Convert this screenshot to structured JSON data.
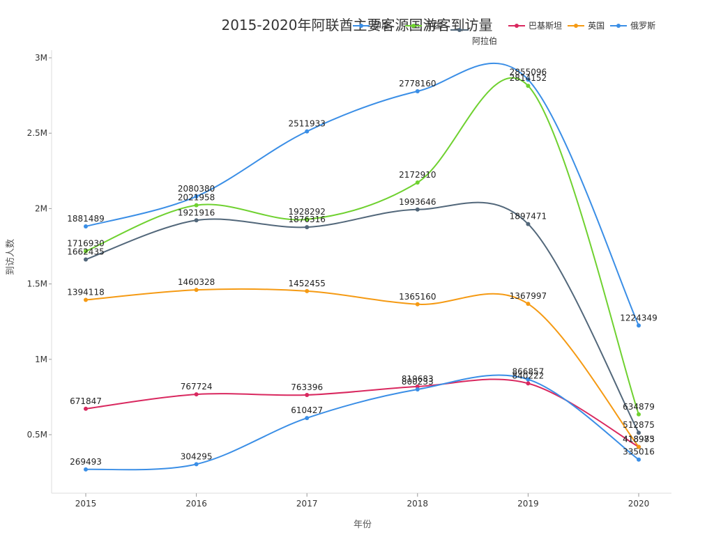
{
  "chart_data": {
    "type": "line",
    "title": "2015-2020年阿联酋主要客源国游客到访量",
    "xlabel": "年份",
    "ylabel": "到访人数",
    "categories": [
      "2015",
      "2016",
      "2017",
      "2018",
      "2019",
      "2020"
    ],
    "ylim": [
      0.1,
      3.0
    ],
    "yticks": [
      {
        "value": 0.5,
        "label": "0.5M"
      },
      {
        "value": 1.0,
        "label": "1M"
      },
      {
        "value": 1.5,
        "label": "1.5M"
      },
      {
        "value": 2.0,
        "label": "2M"
      },
      {
        "value": 2.5,
        "label": "2.5M"
      },
      {
        "value": 3.0,
        "label": "3M"
      }
    ],
    "grid": false,
    "legend_position": "top-right",
    "smooth": true,
    "series": [
      {
        "name": "印度",
        "color": "#3a8ee6",
        "values": [
          1881489,
          2080380,
          2511933,
          2778160,
          2855096,
          1224349
        ]
      },
      {
        "name": "中国",
        "color": "#6fd130",
        "values": [
          1716930,
          2021958,
          1928292,
          2172910,
          2814152,
          634879
        ]
      },
      {
        "name": "沙特阿拉伯",
        "color": "#52677a",
        "values": [
          1662435,
          1921916,
          1876316,
          1993646,
          1897471,
          512875
        ]
      },
      {
        "name": "巴基斯坦",
        "color": "#d9285f",
        "values": [
          671847,
          767724,
          763396,
          819683,
          840222,
          418973
        ]
      },
      {
        "name": "英国",
        "color": "#f59a13",
        "values": [
          1394118,
          1460328,
          1452455,
          1365160,
          1367997,
          418985
        ]
      },
      {
        "name": "俄罗斯",
        "color": "#3a8ee6",
        "values": [
          269493,
          304295,
          610427,
          800233,
          866857,
          335016
        ]
      }
    ]
  },
  "legend": {
    "items": [
      {
        "label": "印度",
        "color": "#3a8ee6"
      },
      {
        "label": "中国",
        "color": "#6fd130"
      },
      {
        "label_line1": "沙特",
        "label_line2": "阿拉伯",
        "color": "#52677a"
      },
      {
        "label": "巴基斯坦",
        "color": "#d9285f"
      },
      {
        "label": "英国",
        "color": "#f59a13"
      },
      {
        "label": "俄罗斯",
        "color": "#3a8ee6"
      }
    ]
  }
}
